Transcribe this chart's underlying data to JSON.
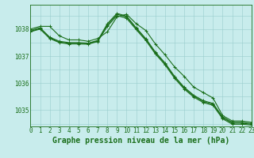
{
  "title": "Graphe pression niveau de la mer (hPa)",
  "background_color": "#c8ecec",
  "grid_color": "#99cccc",
  "line_color": "#1a6e1a",
  "x_values": [
    0,
    1,
    2,
    3,
    4,
    5,
    6,
    7,
    8,
    9,
    10,
    11,
    12,
    13,
    14,
    15,
    16,
    17,
    18,
    19,
    20,
    21,
    22,
    23
  ],
  "lines": [
    [
      1038.0,
      1038.1,
      1038.1,
      1037.75,
      1037.6,
      1037.6,
      1037.55,
      1037.65,
      1037.9,
      1038.45,
      1038.55,
      1038.2,
      1037.95,
      1037.45,
      1037.05,
      1036.6,
      1036.25,
      1035.85,
      1035.65,
      1035.45,
      1034.8,
      1034.6,
      1034.6,
      1034.55
    ],
    [
      1037.95,
      1038.05,
      1037.7,
      1037.55,
      1037.5,
      1037.5,
      1037.48,
      1037.58,
      1038.2,
      1038.58,
      1038.48,
      1038.05,
      1037.65,
      1037.15,
      1036.75,
      1036.25,
      1035.85,
      1035.55,
      1035.35,
      1035.25,
      1034.75,
      1034.55,
      1034.55,
      1034.5
    ],
    [
      1037.92,
      1038.02,
      1037.68,
      1037.52,
      1037.47,
      1037.47,
      1037.46,
      1037.56,
      1038.15,
      1038.55,
      1038.45,
      1038.02,
      1037.62,
      1037.12,
      1036.72,
      1036.22,
      1035.82,
      1035.52,
      1035.32,
      1035.22,
      1034.72,
      1034.52,
      1034.52,
      1034.48
    ],
    [
      1037.9,
      1038.0,
      1037.65,
      1037.5,
      1037.45,
      1037.45,
      1037.44,
      1037.54,
      1038.1,
      1038.5,
      1038.4,
      1037.98,
      1037.58,
      1037.08,
      1036.68,
      1036.18,
      1035.78,
      1035.48,
      1035.28,
      1035.18,
      1034.68,
      1034.48,
      1034.48,
      1034.45
    ]
  ],
  "ylim": [
    1034.4,
    1038.9
  ],
  "yticks": [
    1035,
    1036,
    1037,
    1038
  ],
  "xlim": [
    0,
    23
  ],
  "marker": "+",
  "markersize": 3,
  "linewidth": 0.8,
  "title_fontsize": 7,
  "tick_fontsize": 5.5
}
